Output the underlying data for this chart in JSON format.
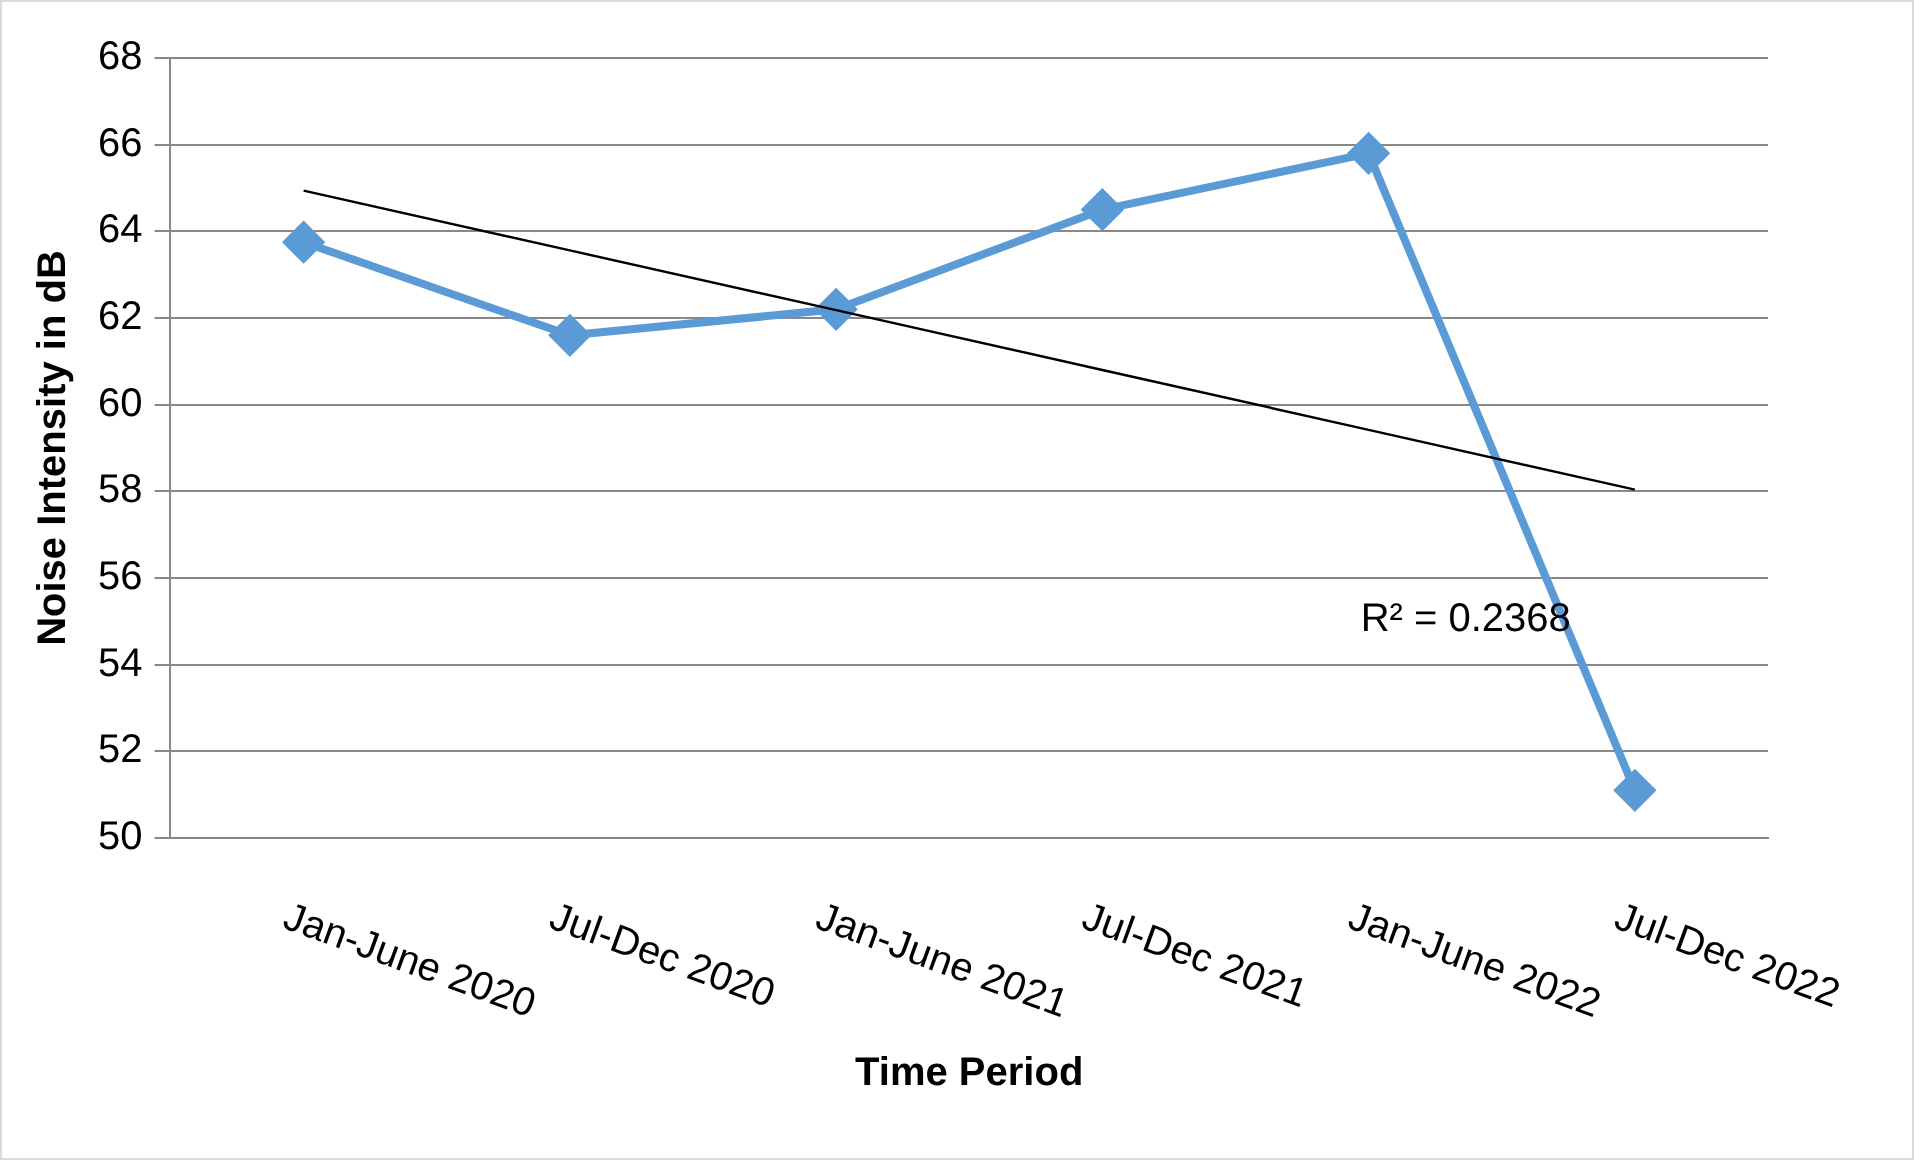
{
  "chart_data": {
    "type": "line",
    "xlabel": "Time Period",
    "ylabel": "Noise Intensity in dB",
    "categories": [
      "Jan-June 2020",
      "Jul-Dec 2020",
      "Jan-June 2021",
      "Jul-Dec 2021",
      "Jan-June 2022",
      "Jul-Dec 2022"
    ],
    "series": [
      {
        "color": "#5b9bd5",
        "values": [
          63.75,
          61.6,
          62.2,
          64.5,
          65.8,
          51.1
        ],
        "marker": "diamond"
      },
      {
        "type": "line",
        "color": "#000000",
        "values": [
          64.94,
          63.56,
          62.18,
          60.8,
          59.42,
          58.04
        ],
        "marker": "none"
      }
    ],
    "ylim": [
      50,
      68
    ],
    "yticks": [
      50,
      52,
      54,
      56,
      58,
      60,
      62,
      64,
      66,
      68
    ],
    "grid": "y",
    "legend": false,
    "annotations": [
      "R² = 0.2368"
    ]
  }
}
